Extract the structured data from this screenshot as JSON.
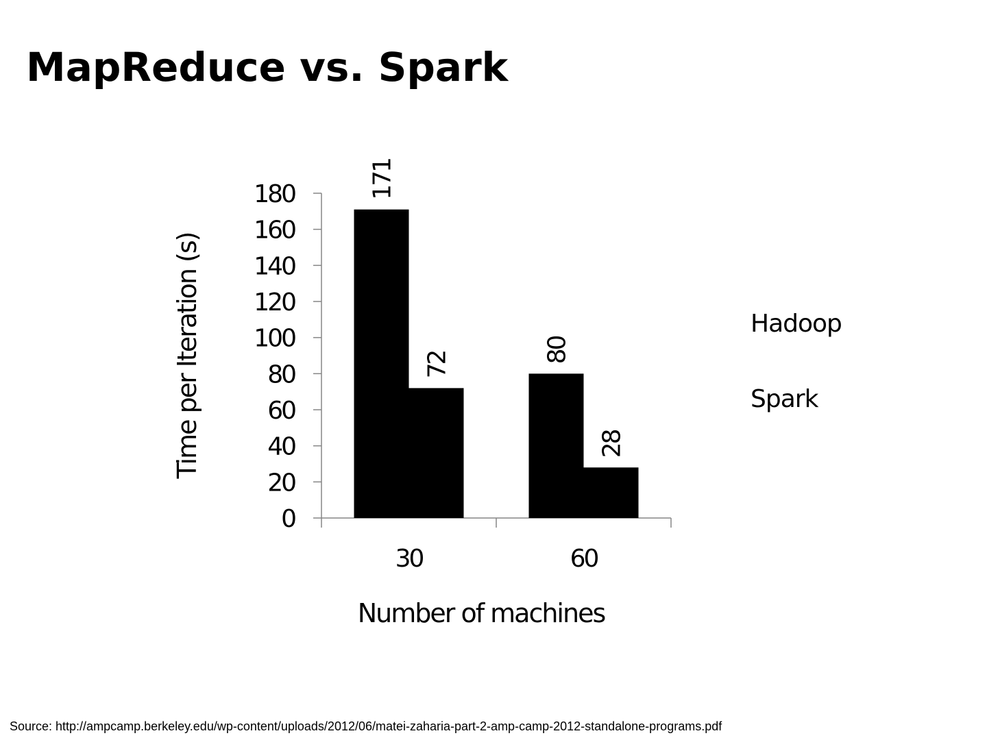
{
  "slide": {
    "title": "MapReduce vs. Spark",
    "source": "Source: http://ampcamp.berkeley.edu/wp-content/uploads/2012/06/matei-zaharia-part-2-amp-camp-2012-standalone-programs.pdf"
  },
  "chart_data": {
    "type": "bar",
    "title": "",
    "xlabel": "Number of machines",
    "ylabel": "Time per Iteration (s)",
    "categories": [
      "30",
      "60"
    ],
    "series": [
      {
        "name": "Hadoop",
        "values": [
          171,
          80
        ]
      },
      {
        "name": "Spark",
        "values": [
          72,
          28
        ]
      }
    ],
    "ylim": [
      0,
      180
    ],
    "yticks": [
      0,
      20,
      40,
      60,
      80,
      100,
      120,
      140,
      160,
      180
    ],
    "grid": false,
    "legend": "right",
    "colors": [
      "#000000",
      "#000000"
    ],
    "data_labels": true
  }
}
